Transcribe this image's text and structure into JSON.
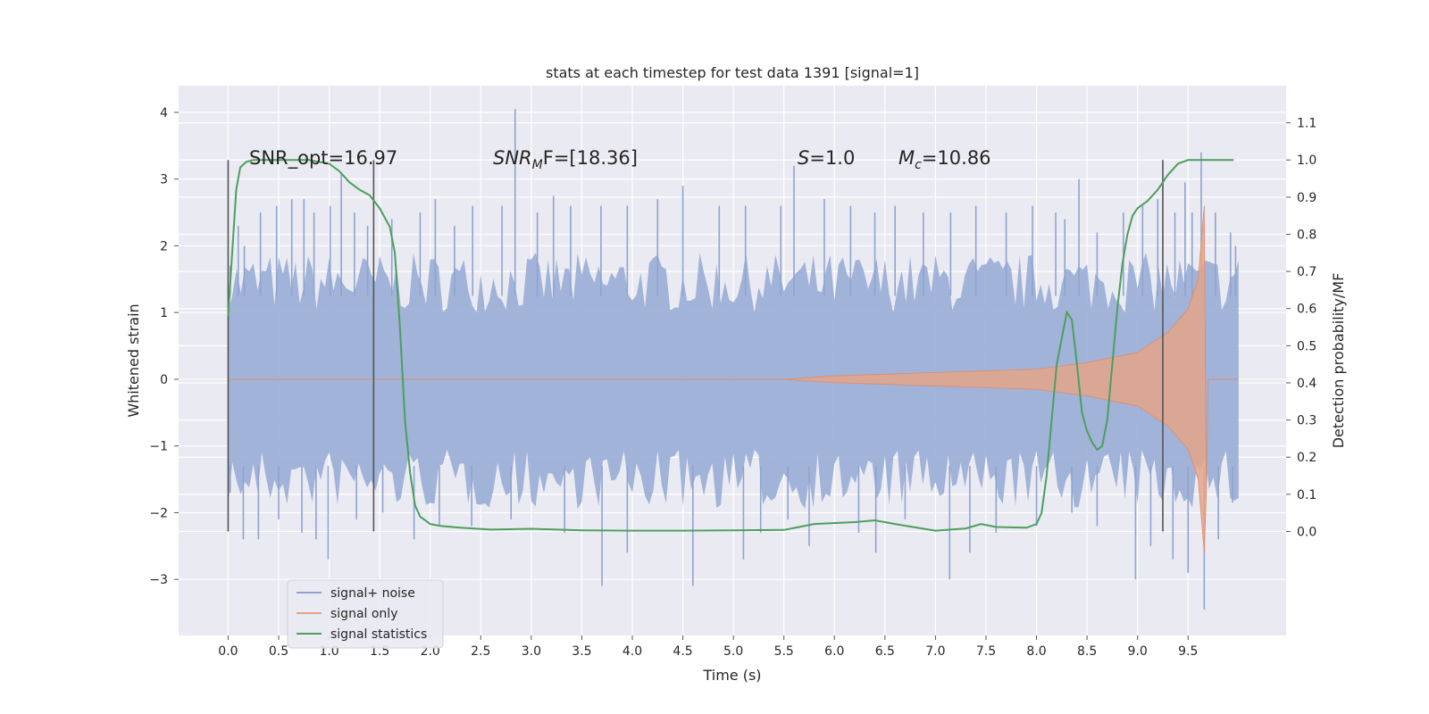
{
  "chart_data": {
    "type": "line",
    "title": "stats at each timestep for test data 1391 [signal=1]",
    "xlabel": "Time (s)",
    "ylabel": "Whitened strain",
    "y2label": "Detection probability/MF",
    "xlim": [
      -0.49,
      10.47
    ],
    "ylim": [
      -3.84,
      4.4
    ],
    "y2lim": [
      -0.28,
      1.2
    ],
    "xticks": [
      "0.0",
      "0.5",
      "1.0",
      "1.5",
      "2.0",
      "2.5",
      "3.0",
      "3.5",
      "4.0",
      "4.5",
      "5.0",
      "5.5",
      "6.0",
      "6.5",
      "7.0",
      "7.5",
      "8.0",
      "8.5",
      "9.0",
      "9.5"
    ],
    "yticks": [
      "4",
      "3",
      "2",
      "1",
      "0",
      "−1",
      "−2",
      "−3"
    ],
    "y2ticks": [
      "1.1",
      "1.0",
      "0.9",
      "0.8",
      "0.7",
      "0.6",
      "0.5",
      "0.4",
      "0.3",
      "0.2",
      "0.1",
      "0.0"
    ],
    "grid": true,
    "legend_position": "lower-left",
    "annotations": [
      {
        "label": "SNR_opt=16.97"
      },
      {
        "sym": "SNR",
        "sub": "M",
        "tail": "F=[18.36]"
      },
      {
        "sym": "S",
        "sub": "",
        "tail": "=1.0"
      },
      {
        "sym": "M",
        "sub": "c",
        "tail": "=10.86"
      }
    ],
    "vlines_x": [
      0.0,
      1.44,
      9.25
    ],
    "series": [
      {
        "name": "signal+ noise",
        "color": "#8fa4cf",
        "x_range": [
          0.0,
          10.0
        ],
        "band_upper": 1.45,
        "band_lower": -1.5,
        "spikes_up": [
          [
            0.02,
            1.7
          ],
          [
            0.1,
            2.3
          ],
          [
            0.16,
            2.0
          ],
          [
            0.32,
            2.5
          ],
          [
            0.48,
            2.6
          ],
          [
            0.63,
            2.7
          ],
          [
            0.75,
            2.7
          ],
          [
            0.85,
            2.5
          ],
          [
            1.01,
            2.6
          ],
          [
            1.12,
            3.1
          ],
          [
            1.25,
            2.5
          ],
          [
            1.38,
            2.3
          ],
          [
            1.62,
            2.4
          ],
          [
            1.9,
            2.5
          ],
          [
            2.05,
            2.7
          ],
          [
            2.24,
            2.3
          ],
          [
            2.42,
            2.6
          ],
          [
            2.71,
            2.6
          ],
          [
            2.84,
            4.05
          ],
          [
            3.06,
            2.5
          ],
          [
            3.22,
            2.75
          ],
          [
            3.39,
            2.6
          ],
          [
            3.69,
            2.6
          ],
          [
            3.95,
            2.6
          ],
          [
            4.25,
            2.7
          ],
          [
            4.5,
            2.9
          ],
          [
            4.86,
            2.6
          ],
          [
            5.12,
            2.6
          ],
          [
            5.47,
            2.6
          ],
          [
            5.6,
            3.2
          ],
          [
            5.9,
            2.7
          ],
          [
            6.16,
            2.6
          ],
          [
            6.4,
            2.5
          ],
          [
            6.6,
            2.6
          ],
          [
            6.88,
            2.5
          ],
          [
            7.15,
            2.5
          ],
          [
            7.4,
            2.6
          ],
          [
            7.7,
            2.5
          ],
          [
            7.96,
            2.6
          ],
          [
            8.19,
            2.5
          ],
          [
            8.28,
            2.4
          ],
          [
            8.42,
            3.0
          ],
          [
            8.6,
            2.2
          ],
          [
            8.86,
            2.5
          ],
          [
            9.05,
            2.6
          ],
          [
            9.2,
            2.7
          ],
          [
            9.37,
            2.5
          ],
          [
            9.47,
            2.95
          ],
          [
            9.54,
            2.5
          ],
          [
            9.63,
            3.4
          ],
          [
            9.77,
            2.5
          ],
          [
            9.92,
            2.2
          ],
          [
            9.97,
            2.0
          ]
        ],
        "spikes_down": [
          [
            0.02,
            -1.7
          ],
          [
            0.15,
            -2.4
          ],
          [
            0.3,
            -2.4
          ],
          [
            0.5,
            -2.1
          ],
          [
            0.73,
            -2.3
          ],
          [
            0.87,
            -2.4
          ],
          [
            0.99,
            -2.7
          ],
          [
            1.27,
            -2.1
          ],
          [
            1.53,
            -2.0
          ],
          [
            1.84,
            -2.4
          ],
          [
            2.09,
            -2.2
          ],
          [
            2.41,
            -2.2
          ],
          [
            2.8,
            -2.1
          ],
          [
            3.33,
            -2.3
          ],
          [
            3.7,
            -3.1
          ],
          [
            3.95,
            -2.6
          ],
          [
            4.6,
            -3.1
          ],
          [
            5.1,
            -2.7
          ],
          [
            5.27,
            -2.3
          ],
          [
            5.54,
            -2.1
          ],
          [
            5.75,
            -2.5
          ],
          [
            6.24,
            -2.3
          ],
          [
            6.41,
            -2.6
          ],
          [
            6.7,
            -2.1
          ],
          [
            7.14,
            -3.0
          ],
          [
            7.34,
            -2.6
          ],
          [
            7.6,
            -2.3
          ],
          [
            8.0,
            -2.2
          ],
          [
            8.35,
            -2.0
          ],
          [
            8.6,
            -2.2
          ],
          [
            8.98,
            -3.0
          ],
          [
            9.13,
            -2.5
          ],
          [
            9.35,
            -2.7
          ],
          [
            9.5,
            -2.9
          ],
          [
            9.66,
            -3.45
          ],
          [
            9.8,
            -2.4
          ],
          [
            9.94,
            -1.85
          ]
        ]
      },
      {
        "name": "signal only",
        "color": "#e4a58a",
        "description_points": [
          [
            5.5,
            0.0
          ],
          [
            6.0,
            0.05
          ],
          [
            7.0,
            0.1
          ],
          [
            8.0,
            0.15
          ],
          [
            8.5,
            0.25
          ],
          [
            9.0,
            0.4
          ],
          [
            9.3,
            0.7
          ],
          [
            9.5,
            1.05
          ],
          [
            9.6,
            1.5
          ],
          [
            9.66,
            2.6
          ],
          [
            9.68,
            -1.75
          ],
          [
            9.7,
            0.0
          ],
          [
            10.0,
            0.0
          ]
        ]
      },
      {
        "name": "signal statistics",
        "color": "#4c9f5e",
        "axis": "right",
        "x": [
          0.0,
          0.08,
          0.12,
          0.18,
          0.25,
          0.4,
          0.6,
          0.8,
          1.0,
          1.1,
          1.2,
          1.3,
          1.4,
          1.5,
          1.6,
          1.65,
          1.7,
          1.75,
          1.8,
          1.85,
          1.9,
          1.95,
          2.0,
          2.1,
          2.3,
          2.6,
          3.0,
          3.5,
          4.0,
          4.5,
          5.0,
          5.5,
          5.8,
          6.2,
          6.4,
          6.6,
          7.0,
          7.3,
          7.45,
          7.6,
          7.9,
          8.0,
          8.05,
          8.1,
          8.15,
          8.2,
          8.25,
          8.3,
          8.35,
          8.4,
          8.45,
          8.5,
          8.55,
          8.6,
          8.65,
          8.7,
          8.75,
          8.8,
          8.85,
          8.9,
          8.95,
          9.0,
          9.1,
          9.2,
          9.3,
          9.4,
          9.5,
          9.6,
          9.7,
          9.8,
          9.95
        ],
        "y": [
          0.58,
          0.92,
          0.98,
          0.995,
          1.0,
          1.0,
          1.0,
          1.0,
          0.99,
          0.97,
          0.94,
          0.92,
          0.905,
          0.87,
          0.82,
          0.75,
          0.55,
          0.3,
          0.16,
          0.07,
          0.04,
          0.03,
          0.02,
          0.015,
          0.01,
          0.005,
          0.007,
          0.003,
          0.002,
          0.002,
          0.003,
          0.004,
          0.02,
          0.025,
          0.03,
          0.02,
          0.002,
          0.008,
          0.02,
          0.012,
          0.01,
          0.02,
          0.05,
          0.15,
          0.3,
          0.45,
          0.52,
          0.59,
          0.57,
          0.45,
          0.32,
          0.27,
          0.24,
          0.22,
          0.23,
          0.3,
          0.45,
          0.6,
          0.72,
          0.8,
          0.85,
          0.87,
          0.89,
          0.92,
          0.96,
          0.99,
          1.0,
          1.0,
          1.0,
          1.0,
          1.0
        ]
      }
    ]
  }
}
